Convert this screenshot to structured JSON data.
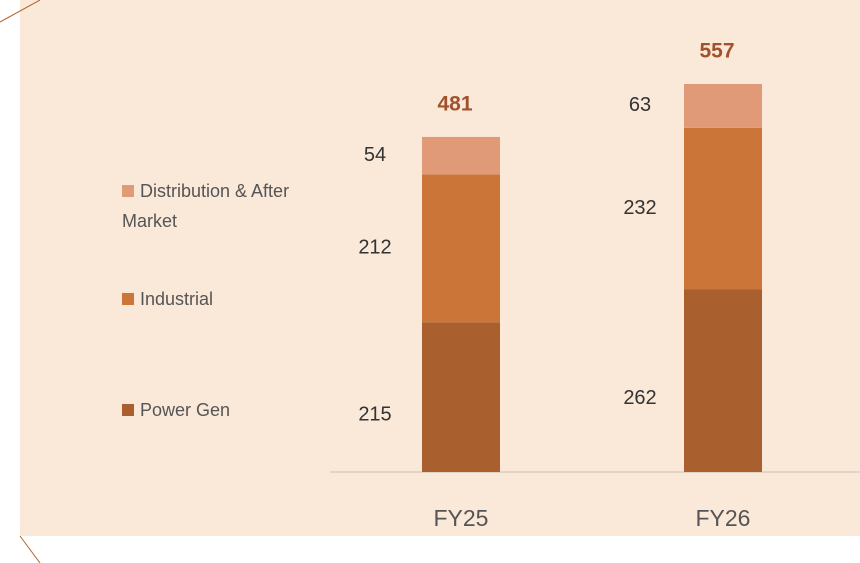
{
  "chart_data": {
    "type": "stacked_bar",
    "categories": [
      "FY25",
      "FY26"
    ],
    "series": [
      {
        "name": "Power Gen",
        "color": "#a9602e",
        "values": [
          215,
          262
        ]
      },
      {
        "name": "Industrial",
        "color": "#cc7538",
        "values": [
          212,
          232
        ]
      },
      {
        "name": "Distribution & After Market",
        "color": "#e09a78",
        "values": [
          54,
          63
        ]
      }
    ],
    "totals": [
      481,
      557
    ]
  }
}
